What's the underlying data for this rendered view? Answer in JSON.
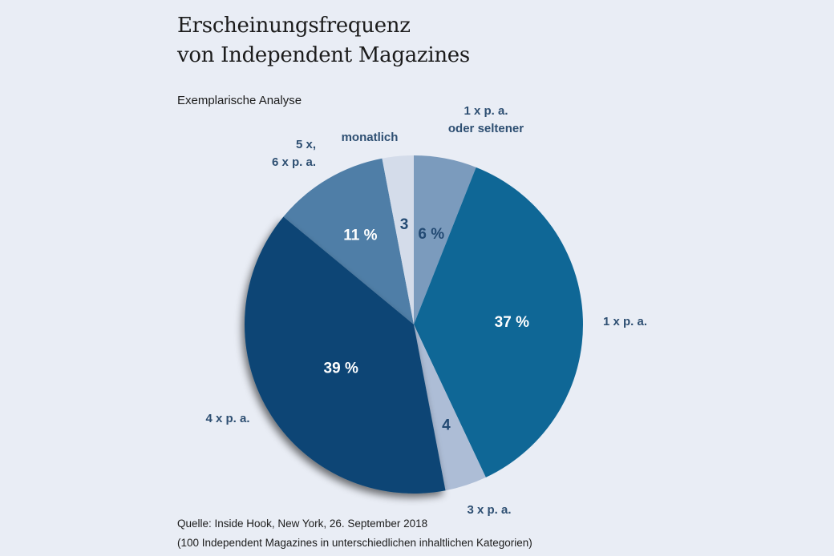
{
  "chart_data": {
    "type": "pie",
    "title": [
      "Erscheinungsfrequenz",
      "von Independent Magazines"
    ],
    "subtitle": "Exemplarische Analyse",
    "unit": "%",
    "slices": [
      {
        "category": "1 x p. a. oder seltener",
        "label_lines": [
          "1 x p. a.",
          "oder seltener"
        ],
        "value": 6,
        "value_label": "6 %",
        "color": "#7b9bbd",
        "value_label_style": "dark"
      },
      {
        "category": "1 x p. a.",
        "label_lines": [
          "1 x p. a."
        ],
        "value": 37,
        "value_label": "37 %",
        "color": "#0f6796",
        "value_label_style": "white"
      },
      {
        "category": "3 x p. a.",
        "label_lines": [
          "3 x p. a."
        ],
        "value": 4,
        "value_label": "4",
        "color": "#adbdd6",
        "value_label_style": "dark"
      },
      {
        "category": "4 x p. a.",
        "label_lines": [
          "4 x p. a."
        ],
        "value": 39,
        "value_label": "39 %",
        "color": "#0a4575",
        "value_label_style": "white"
      },
      {
        "category": "5 x, 6 x p. a.",
        "label_lines": [
          "5 x,",
          "6 x p. a."
        ],
        "value": 11,
        "value_label": "11 %",
        "color": "#4f7ea7",
        "value_label_style": "white"
      },
      {
        "category": "monatlich",
        "label_lines": [
          "monatlich"
        ],
        "value": 3,
        "value_label": "3",
        "color": "#d4dcea",
        "value_label_style": "dark"
      }
    ],
    "start": "12 o'clock",
    "direction": "clockwise",
    "legend": "none (direct labels)"
  },
  "source": {
    "line1": "Quelle: Inside Hook, New York, 26. September 2018",
    "line2": "(100 Independent Magazines in unterschiedlichen inhaltlichen Kategorien)"
  }
}
